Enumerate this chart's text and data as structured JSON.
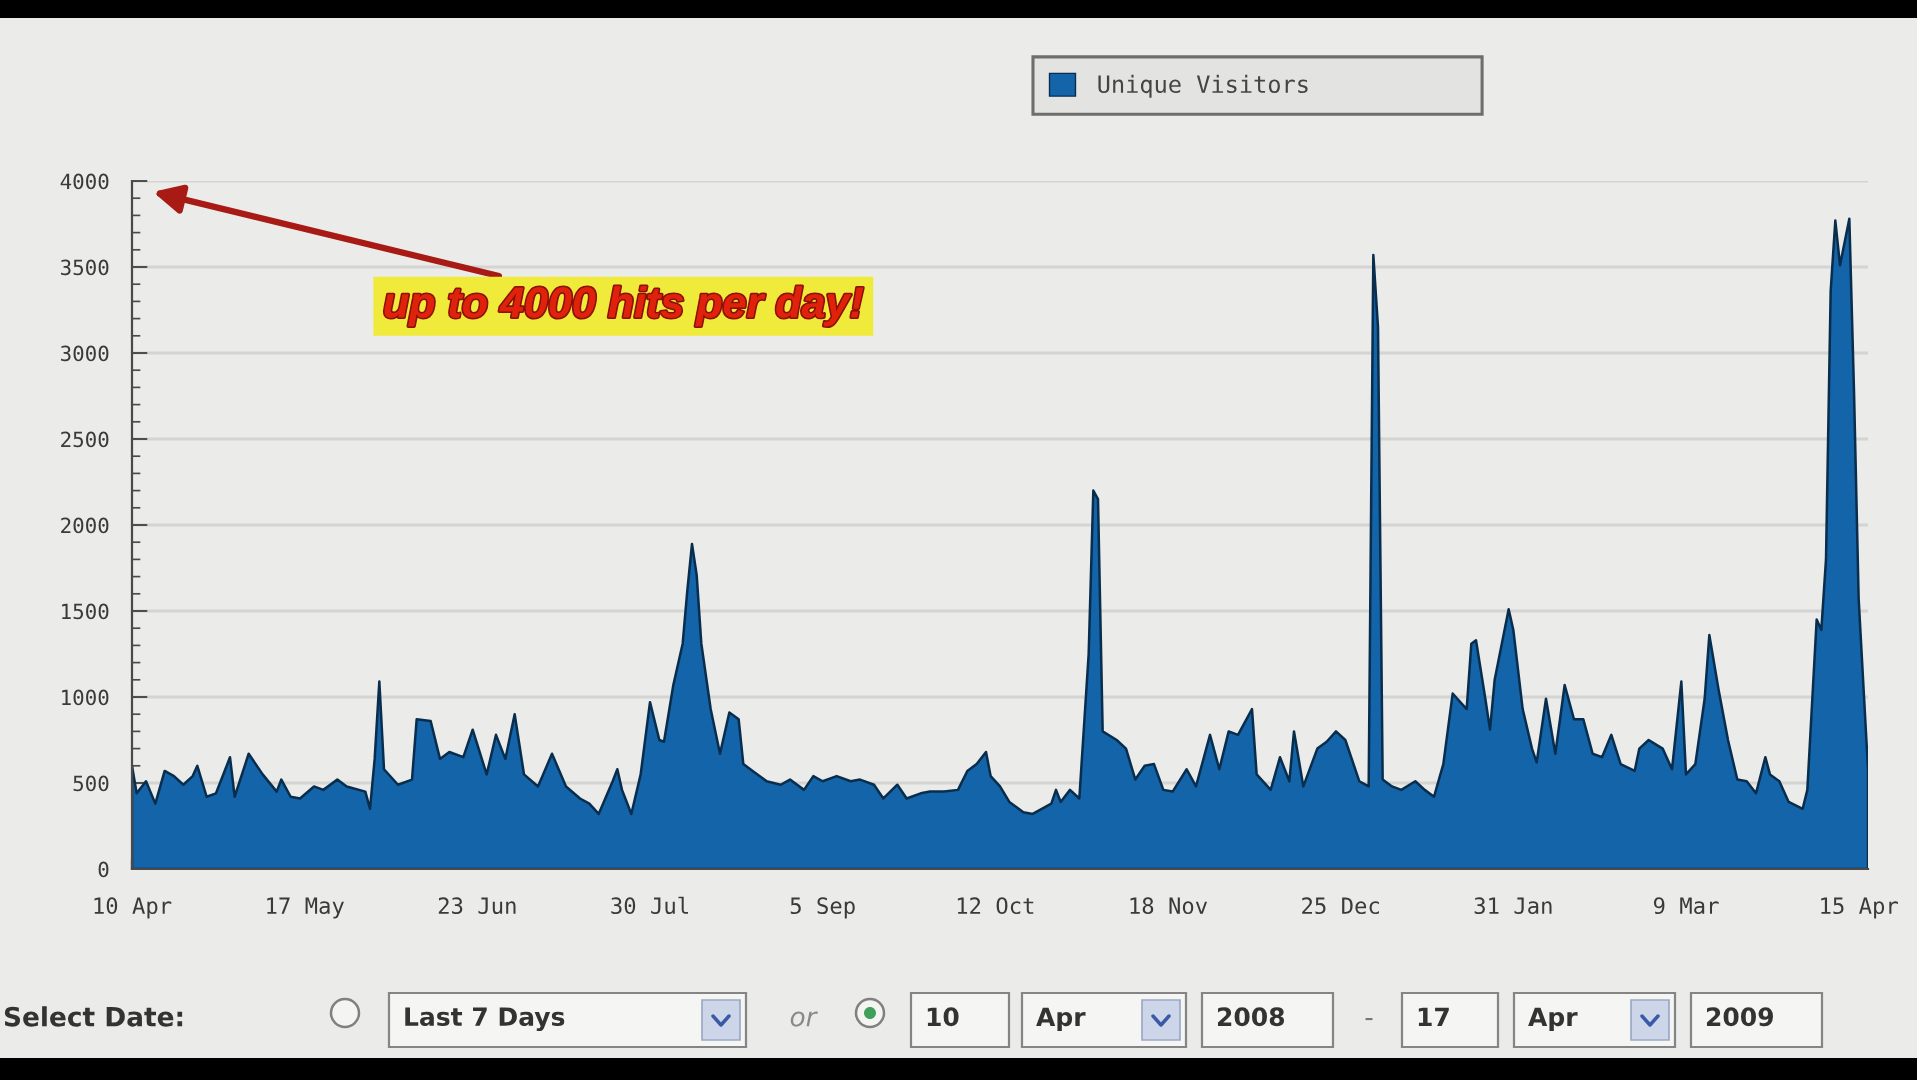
{
  "chart_data": {
    "type": "area",
    "x": [
      "2008-04-10",
      "2008-04-11",
      "2008-04-13",
      "2008-04-15",
      "2008-04-17",
      "2008-04-19",
      "2008-04-21",
      "2008-04-23",
      "2008-04-24",
      "2008-04-26",
      "2008-04-28",
      "2008-05-01",
      "2008-05-02",
      "2008-05-05",
      "2008-05-08",
      "2008-05-11",
      "2008-05-12",
      "2008-05-14",
      "2008-05-16",
      "2008-05-19",
      "2008-05-21",
      "2008-05-24",
      "2008-05-26",
      "2008-05-30",
      "2008-05-31",
      "2008-06-01",
      "2008-06-02",
      "2008-06-03",
      "2008-06-06",
      "2008-06-09",
      "2008-06-10",
      "2008-06-13",
      "2008-06-15",
      "2008-06-17",
      "2008-06-20",
      "2008-06-22",
      "2008-06-25",
      "2008-06-27",
      "2008-06-29",
      "2008-07-01",
      "2008-07-03",
      "2008-07-06",
      "2008-07-09",
      "2008-07-12",
      "2008-07-15",
      "2008-07-17",
      "2008-07-19",
      "2008-07-22",
      "2008-07-23",
      "2008-07-24",
      "2008-07-26",
      "2008-07-28",
      "2008-07-30",
      "2008-08-01",
      "2008-08-02",
      "2008-08-04",
      "2008-08-06",
      "2008-08-07",
      "2008-08-08",
      "2008-08-09",
      "2008-08-10",
      "2008-08-12",
      "2008-08-14",
      "2008-08-16",
      "2008-08-18",
      "2008-08-19",
      "2008-08-21",
      "2008-08-24",
      "2008-08-27",
      "2008-08-29",
      "2008-09-01",
      "2008-09-03",
      "2008-09-05",
      "2008-09-08",
      "2008-09-11",
      "2008-09-13",
      "2008-09-16",
      "2008-09-18",
      "2008-09-21",
      "2008-09-23",
      "2008-09-26",
      "2008-09-28",
      "2008-10-01",
      "2008-10-04",
      "2008-10-06",
      "2008-10-08",
      "2008-10-10",
      "2008-10-11",
      "2008-10-13",
      "2008-10-15",
      "2008-10-18",
      "2008-10-20",
      "2008-10-24",
      "2008-10-25",
      "2008-10-26",
      "2008-10-28",
      "2008-10-30",
      "2008-11-01",
      "2008-11-02",
      "2008-11-03",
      "2008-11-04",
      "2008-11-07",
      "2008-11-09",
      "2008-11-11",
      "2008-11-13",
      "2008-11-15",
      "2008-11-17",
      "2008-11-19",
      "2008-11-22",
      "2008-11-24",
      "2008-11-27",
      "2008-11-29",
      "2008-12-01",
      "2008-12-03",
      "2008-12-06",
      "2008-12-07",
      "2008-12-10",
      "2008-12-12",
      "2008-12-14",
      "2008-12-15",
      "2008-12-17",
      "2008-12-20",
      "2008-12-22",
      "2008-12-24",
      "2008-12-26",
      "2008-12-29",
      "2008-12-31",
      "2009-01-01",
      "2009-01-02",
      "2009-01-03",
      "2009-01-05",
      "2009-01-07",
      "2009-01-10",
      "2009-01-12",
      "2009-01-14",
      "2009-01-16",
      "2009-01-18",
      "2009-01-19",
      "2009-01-21",
      "2009-01-22",
      "2009-01-23",
      "2009-01-25",
      "2009-01-26",
      "2009-01-27",
      "2009-01-30",
      "2009-01-31",
      "2009-02-02",
      "2009-02-04",
      "2009-02-05",
      "2009-02-07",
      "2009-02-09",
      "2009-02-11",
      "2009-02-13",
      "2009-02-15",
      "2009-02-17",
      "2009-02-19",
      "2009-02-21",
      "2009-02-23",
      "2009-02-26",
      "2009-02-27",
      "2009-03-01",
      "2009-03-04",
      "2009-03-06",
      "2009-03-08",
      "2009-03-09",
      "2009-03-11",
      "2009-03-13",
      "2009-03-14",
      "2009-03-16",
      "2009-03-18",
      "2009-03-20",
      "2009-03-22",
      "2009-03-24",
      "2009-03-26",
      "2009-03-27",
      "2009-03-29",
      "2009-03-31",
      "2009-04-03",
      "2009-04-04",
      "2009-04-06",
      "2009-04-07",
      "2009-04-08",
      "2009-04-09",
      "2009-04-10",
      "2009-04-11",
      "2009-04-13",
      "2009-04-14",
      "2009-04-15",
      "2009-04-17"
    ],
    "series": [
      {
        "name": "Unique Visitors",
        "color": "#1464aa",
        "values": [
          600,
          440,
          510,
          380,
          570,
          540,
          490,
          540,
          600,
          420,
          440,
          650,
          420,
          670,
          550,
          450,
          520,
          420,
          410,
          480,
          460,
          520,
          480,
          450,
          350,
          640,
          1090,
          580,
          490,
          520,
          870,
          860,
          640,
          680,
          650,
          810,
          550,
          780,
          640,
          900,
          550,
          480,
          670,
          480,
          410,
          380,
          320,
          510,
          580,
          460,
          320,
          550,
          970,
          750,
          740,
          1070,
          1310,
          1620,
          1890,
          1710,
          1310,
          930,
          670,
          910,
          870,
          610,
          570,
          510,
          490,
          520,
          460,
          540,
          510,
          540,
          510,
          520,
          490,
          410,
          490,
          410,
          440,
          450,
          450,
          460,
          570,
          610,
          680,
          540,
          480,
          390,
          330,
          320,
          380,
          460,
          390,
          460,
          410,
          1250,
          2200,
          2150,
          800,
          750,
          700,
          520,
          600,
          610,
          460,
          450,
          580,
          480,
          780,
          580,
          800,
          780,
          930,
          550,
          460,
          650,
          510,
          800,
          480,
          700,
          740,
          800,
          750,
          510,
          480,
          3570,
          3150,
          520,
          480,
          460,
          510,
          460,
          420,
          610,
          1020,
          990,
          930,
          1310,
          1330,
          990,
          810,
          1100,
          1510,
          1390,
          930,
          700,
          620,
          990,
          670,
          1070,
          870,
          870,
          670,
          650,
          780,
          610,
          570,
          700,
          750,
          700,
          580,
          1090,
          550,
          610,
          990,
          1360,
          1040,
          750,
          520,
          510,
          440,
          650,
          550,
          510,
          390,
          350,
          460,
          1450,
          1390,
          1800,
          3360,
          3770,
          3510,
          3780,
          2780,
          1570,
          580
        ]
      }
    ],
    "xlim": [
      "2008-04-10",
      "2009-04-17"
    ],
    "xticks": [
      {
        "value": "2008-04-10",
        "label": "10 Apr"
      },
      {
        "value": "2008-05-17",
        "label": "17 May"
      },
      {
        "value": "2008-06-23",
        "label": "23 Jun"
      },
      {
        "value": "2008-07-30",
        "label": "30 Jul"
      },
      {
        "value": "2008-09-05",
        "label": "5 Sep"
      },
      {
        "value": "2008-10-12",
        "label": "12 Oct"
      },
      {
        "value": "2008-11-18",
        "label": "18 Nov"
      },
      {
        "value": "2008-12-25",
        "label": "25 Dec"
      },
      {
        "value": "2009-01-31",
        "label": "31 Jan"
      },
      {
        "value": "2009-03-09",
        "label": "9 Mar"
      },
      {
        "value": "2009-04-15",
        "label": "15 Apr"
      }
    ],
    "ylim": [
      0,
      4000
    ],
    "yticks": [
      0,
      {
        "value": 100,
        "label": null
      },
      {
        "value": 200,
        "label": null
      },
      {
        "value": 300,
        "label": null
      },
      {
        "value": 400,
        "label": null
      },
      500,
      {
        "value": 600,
        "label": null
      },
      {
        "value": 700,
        "label": null
      },
      {
        "value": 800,
        "label": null
      },
      {
        "value": 900,
        "label": null
      },
      1000,
      {
        "value": 1100,
        "label": null
      },
      {
        "value": 1200,
        "label": null
      },
      {
        "value": 1300,
        "label": null
      },
      {
        "value": 1400,
        "label": null
      },
      1500,
      {
        "value": 1600,
        "label": null
      },
      {
        "value": 1700,
        "label": null
      },
      {
        "value": 1800,
        "label": null
      },
      {
        "value": 1900,
        "label": null
      },
      2000,
      {
        "value": 2100,
        "label": null
      },
      {
        "value": 2200,
        "label": null
      },
      {
        "value": 2300,
        "label": null
      },
      {
        "value": 2400,
        "label": null
      },
      2500,
      {
        "value": 2600,
        "label": null
      },
      {
        "value": 2700,
        "label": null
      },
      {
        "value": 2800,
        "label": null
      },
      {
        "value": 2900,
        "label": null
      },
      3000,
      {
        "value": 3100,
        "label": null
      },
      {
        "value": 3200,
        "label": null
      },
      {
        "value": 3300,
        "label": null
      },
      {
        "value": 3400,
        "label": null
      },
      3500,
      {
        "value": 3600,
        "label": null
      },
      {
        "value": 3700,
        "label": null
      },
      {
        "value": 3800,
        "label": null
      },
      {
        "value": 3900,
        "label": null
      },
      4000
    ],
    "grid": "y",
    "legend": "top",
    "annotations": [
      "up to 4000 hits per day!",
      "Select Date:",
      "Last 7 Days",
      "or",
      "10",
      "Apr",
      "2008",
      "-",
      "17",
      "Apr",
      "2009"
    ]
  }
}
